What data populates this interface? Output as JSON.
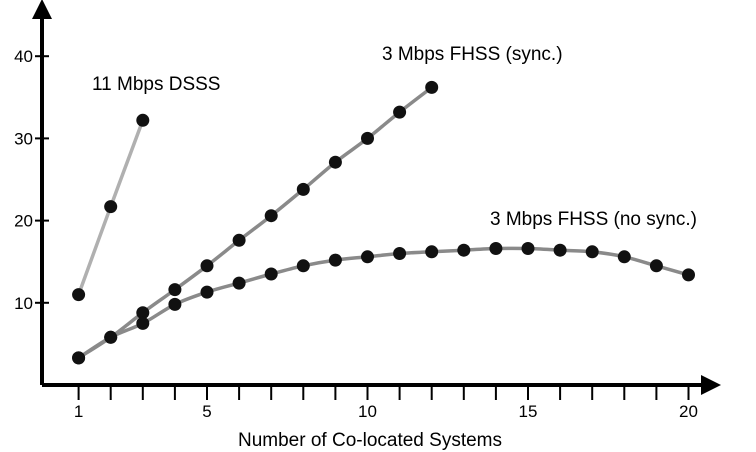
{
  "chart_data": {
    "type": "line",
    "title": "",
    "xlabel": "Number of Co-located Systems",
    "ylabel": "",
    "xlim": [
      0,
      21
    ],
    "ylim": [
      0,
      45
    ],
    "x_ticks": [
      1,
      5,
      10,
      15,
      20
    ],
    "y_ticks": [
      10,
      20,
      30,
      40
    ],
    "grid": false,
    "legend": "none",
    "series": [
      {
        "name": "11 Mbps DSSS",
        "color": "#b0b0b0",
        "x": [
          1,
          2,
          3
        ],
        "y": [
          11,
          21.7,
          32.2
        ]
      },
      {
        "name": "3 Mbps FHSS (sync.)",
        "color": "#8a8a8a",
        "x": [
          1,
          2,
          3,
          4,
          5,
          6,
          7,
          8,
          9,
          10,
          11,
          12
        ],
        "y": [
          3.3,
          5.8,
          8.8,
          11.6,
          14.5,
          17.6,
          20.6,
          23.8,
          27.1,
          30.0,
          33.2,
          36.2
        ]
      },
      {
        "name": "3 Mbps FHSS (no sync.)",
        "color": "#8a8a8a",
        "x": [
          1,
          2,
          3,
          4,
          5,
          6,
          7,
          8,
          9,
          10,
          11,
          12,
          13,
          14,
          15,
          16,
          17,
          18,
          19,
          20
        ],
        "y": [
          3.3,
          5.8,
          7.5,
          9.8,
          11.3,
          12.4,
          13.5,
          14.5,
          15.2,
          15.6,
          16.0,
          16.2,
          16.4,
          16.6,
          16.6,
          16.4,
          16.2,
          15.6,
          14.5,
          13.4
        ]
      }
    ]
  }
}
